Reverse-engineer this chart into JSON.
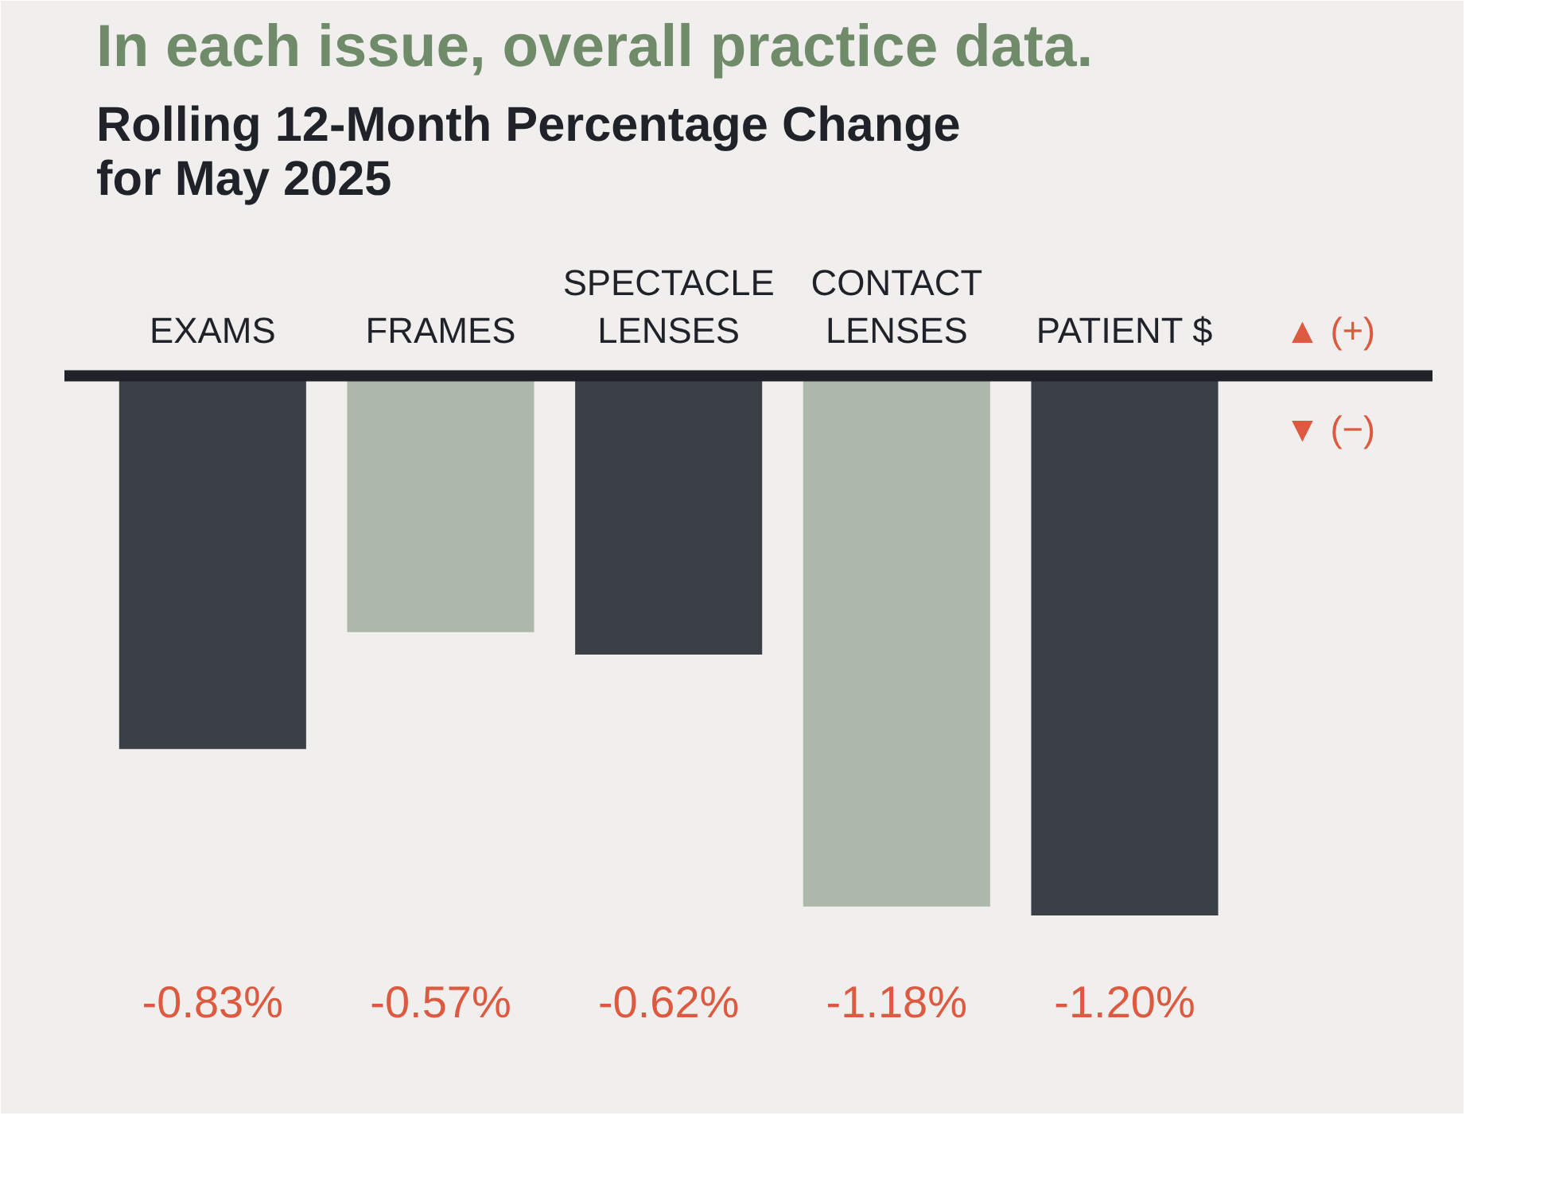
{
  "chart_data": {
    "type": "bar",
    "title": "In each issue, overall practice data.",
    "subtitle": "Rolling 12-Month Percentage Change\nfor May 2025",
    "categories": [
      "EXAMS",
      "FRAMES",
      "SPECTACLE\nLENSES",
      "CONTACT\nLENSES",
      "PATIENT $"
    ],
    "values": [
      -0.83,
      -0.57,
      -0.62,
      -1.18,
      -1.2
    ],
    "colors": [
      "#3b3f46",
      "#adb7aa",
      "#3b3f46",
      "#adb7aa",
      "#3b3f46"
    ],
    "value_labels": [
      "-0.83%",
      "-0.57%",
      "-0.62%",
      "-1.18%",
      "-1.20%"
    ],
    "annotations": [
      "▲ (+)",
      "▼ (−)"
    ]
  }
}
